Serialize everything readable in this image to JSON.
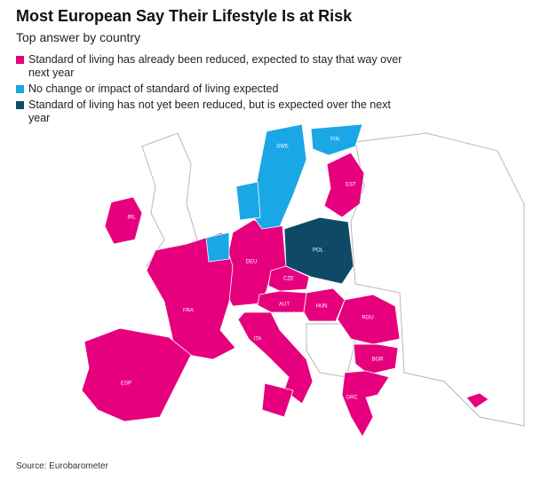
{
  "header": {
    "title": "Most European Say Their Lifestyle Is at Risk",
    "subtitle": "Top answer by country"
  },
  "legend": [
    {
      "label": "Standard of living has already been reduced, expected to stay that way over next year",
      "color": "#e6007e",
      "countries": [
        "IRL",
        "EST",
        "DEU",
        "FRA",
        "CZE",
        "AUT",
        "HUN",
        "ROU",
        "ITA",
        "BGR",
        "ESP",
        "GRC"
      ]
    },
    {
      "label": "No change or impact of standard of living expected",
      "color": "#1aa7e6",
      "countries": [
        "SWE",
        "FIN"
      ]
    },
    {
      "label": "Standard of living has not yet been reduced, but is expected over the next year",
      "color": "#0e4a66",
      "countries": [
        "POL"
      ]
    }
  ],
  "source": "Source: Eurobarometer"
}
